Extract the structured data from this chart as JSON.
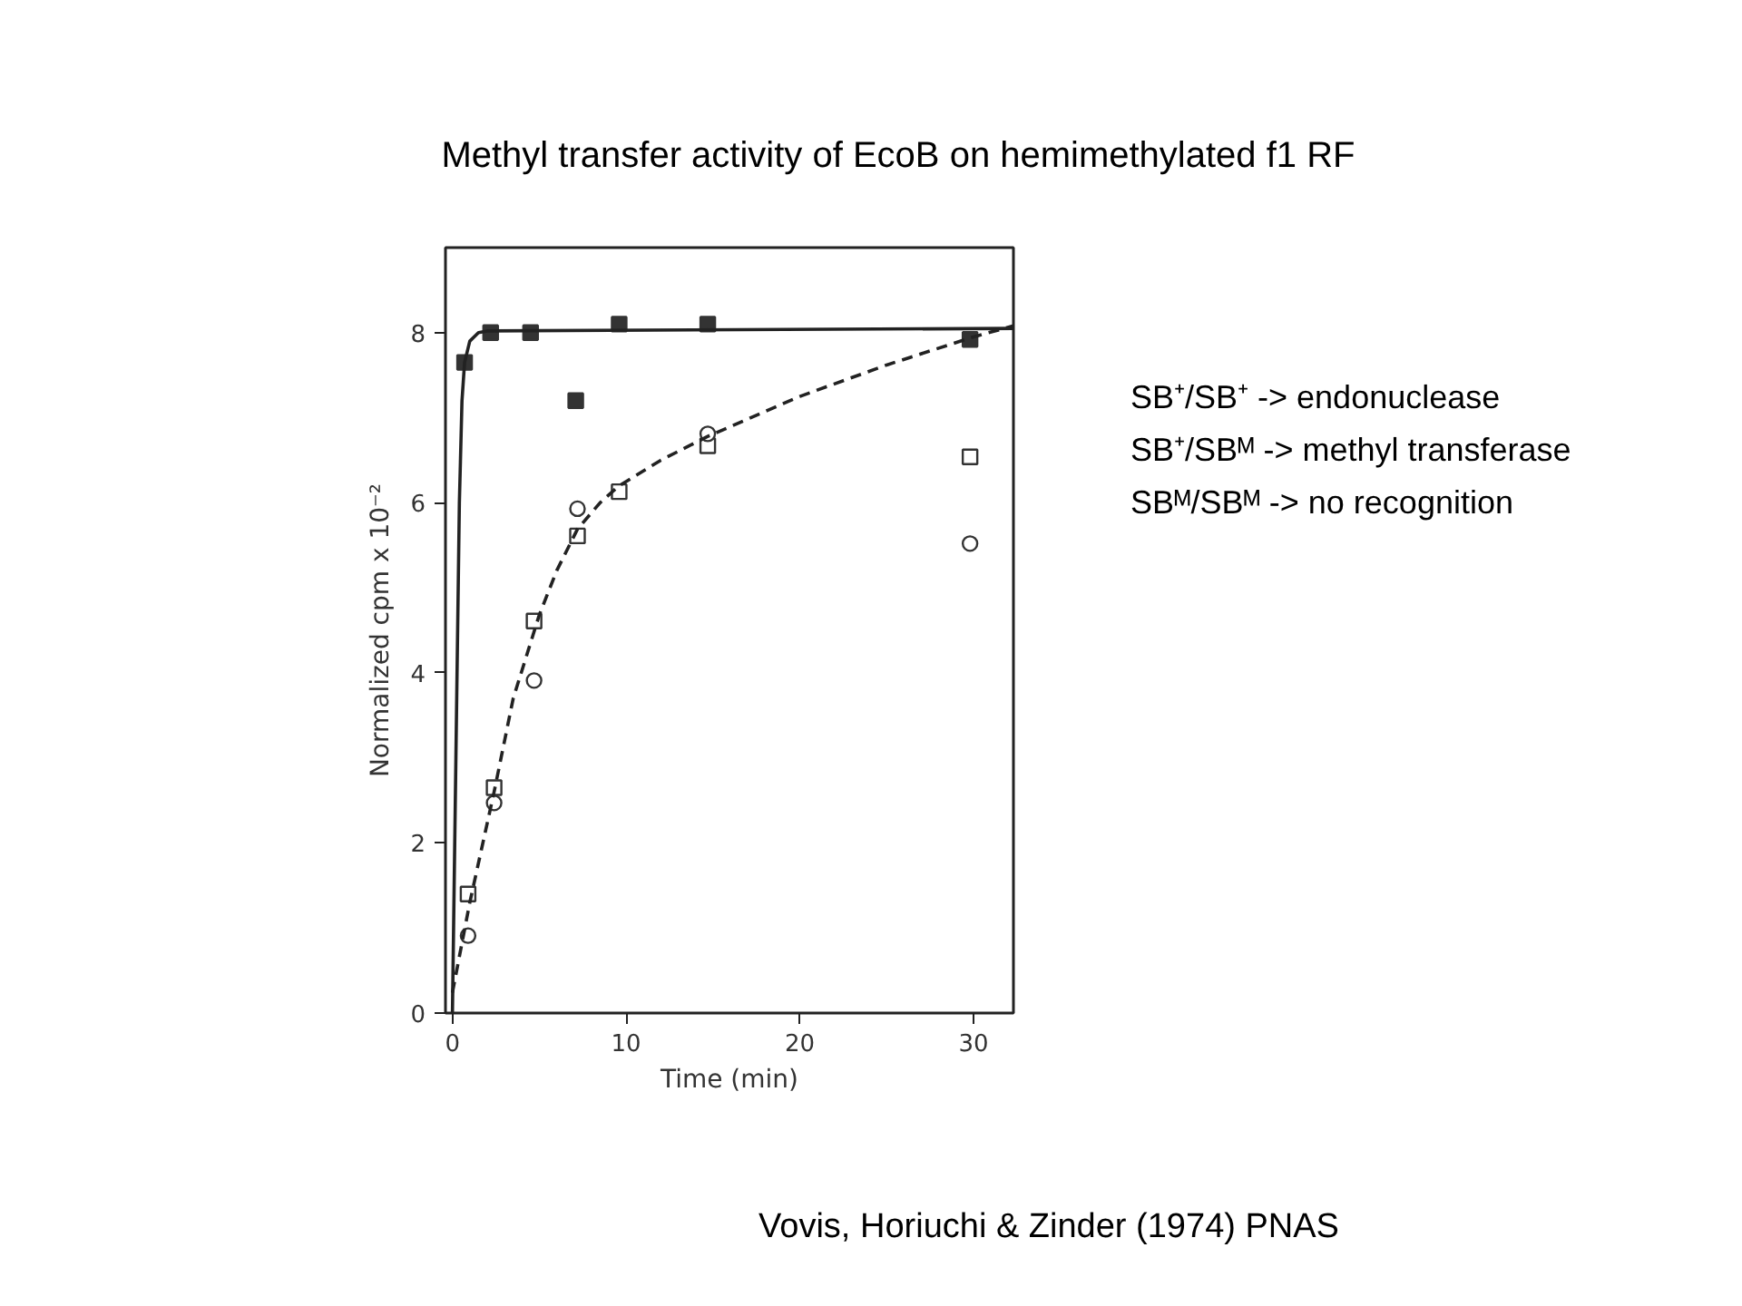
{
  "chart_data": {
    "type": "scatter",
    "title": "Methyl transfer activity of EcoB on hemimethylated f1 RF",
    "xlabel": "Time (min)",
    "ylabel": "Normalized cpm x 10⁻²",
    "xlim": [
      -0.4,
      32.3
    ],
    "ylim": [
      0,
      9.0
    ],
    "xticks": [
      0,
      10,
      20,
      30
    ],
    "yticks": [
      0,
      2,
      4,
      6,
      8
    ],
    "grid": false,
    "annotations": [
      "SB⁺/SB⁺ -> endonuclease",
      "SB⁺/SBᴹ -> methyl transferase",
      "SBᴹ/SBᴹ -> no recognition",
      "Vovis, Horiuchi & Zinder (1974) PNAS"
    ],
    "series": [
      {
        "marker": "square",
        "color": "#333333",
        "x": [
          0.7,
          2.2,
          4.5,
          7.1,
          9.6,
          14.7,
          29.8
        ],
        "values": [
          7.65,
          8.0,
          8.0,
          7.2,
          8.1,
          8.1,
          7.92
        ]
      },
      {
        "marker": "square",
        "color": "#ffffff",
        "x": [
          0.9,
          2.4,
          4.7,
          7.2,
          9.6,
          14.7,
          29.8
        ],
        "values": [
          1.4,
          2.65,
          4.61,
          5.61,
          6.13,
          6.67,
          6.54
        ]
      },
      {
        "marker": "circle",
        "color": "#ffffff",
        "x": [
          0.9,
          2.4,
          4.7,
          7.2,
          14.7,
          29.8
        ],
        "values": [
          0.91,
          2.47,
          3.91,
          5.93,
          6.81,
          5.52
        ]
      },
      {
        "type": "line",
        "line_style": "solid",
        "color": "#222222",
        "x": [
          0,
          0.2,
          0.4,
          0.55,
          0.7,
          1.0,
          1.5,
          2.0,
          32.3
        ],
        "values": [
          0,
          3.0,
          6.0,
          7.2,
          7.65,
          7.9,
          8.0,
          8.02,
          8.05
        ]
      },
      {
        "type": "line",
        "line_style": "dashed",
        "color": "#222222",
        "x": [
          0,
          1,
          2.4,
          3.5,
          5,
          6,
          7.2,
          8.5,
          9.6,
          12,
          14.7,
          20,
          25,
          30,
          32.3
        ],
        "values": [
          0.24,
          1.3,
          2.6,
          3.7,
          4.68,
          5.2,
          5.69,
          6.0,
          6.2,
          6.5,
          6.78,
          7.25,
          7.62,
          7.95,
          8.08
        ]
      }
    ]
  }
}
